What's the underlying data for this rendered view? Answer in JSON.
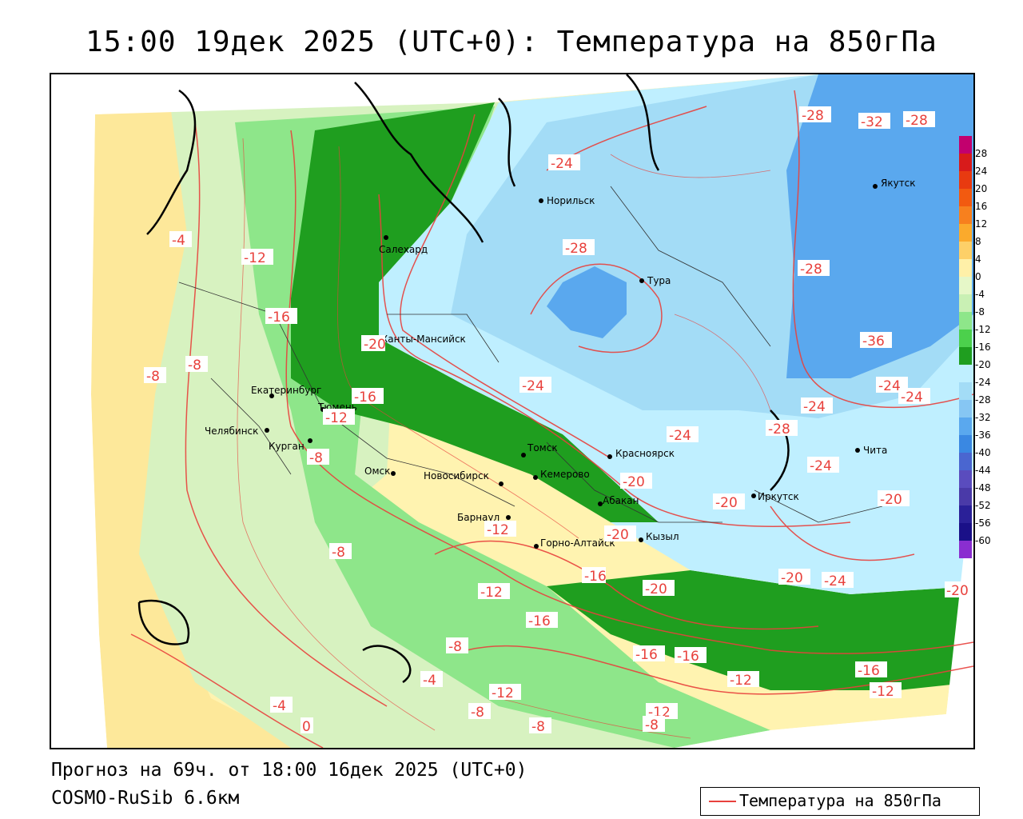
{
  "header": {
    "title": "15:00 19дек 2025 (UTC+0): Температура на 850гПа"
  },
  "footer": {
    "forecast": "Прогноз на 69ч. от 18:00 16дек 2025 (UTC+0)",
    "model": "COSMO-RuSib 6.6км"
  },
  "legend": {
    "label": "Температура на 850гПа",
    "line_color": "#e8413c"
  },
  "colorbar": {
    "ticks": [
      "28",
      "24",
      "20",
      "16",
      "12",
      "8",
      "4",
      "0",
      "-4",
      "-8",
      "-12",
      "-16",
      "-20",
      "-24",
      "-28",
      "-32",
      "-36",
      "-40",
      "-44",
      "-48",
      "-52",
      "-56",
      "-60"
    ],
    "colors": [
      "#c2006e",
      "#d81b1b",
      "#e83a10",
      "#f25a10",
      "#f7801e",
      "#fbaa2c",
      "#fdd068",
      "#fff0a8",
      "#e6f7c8",
      "#c9f0b4",
      "#8ee68a",
      "#4cd04c",
      "#1f9e1f",
      "#bfefff",
      "#a3dcf6",
      "#86c6f3",
      "#5aa8ee",
      "#3a88e2",
      "#4a66d0",
      "#5a4cbe",
      "#4a3aa8",
      "#2a2098",
      "#1a1088",
      "#8a2ed0"
    ]
  },
  "cities": [
    {
      "name": "Норильск"
    },
    {
      "name": "Салехард"
    },
    {
      "name": "Тура"
    },
    {
      "name": "Якутск"
    },
    {
      "name": "Ханты-Мансийск"
    },
    {
      "name": "Екатеринбург"
    },
    {
      "name": "Тюмень"
    },
    {
      "name": "Челябинск"
    },
    {
      "name": "Курган"
    },
    {
      "name": "Омск"
    },
    {
      "name": "Новосибирск"
    },
    {
      "name": "Томск"
    },
    {
      "name": "Красноярск"
    },
    {
      "name": "Кемерово"
    },
    {
      "name": "Абакан"
    },
    {
      "name": "Барнаул"
    },
    {
      "name": "Горно-Алтайск"
    },
    {
      "name": "Кызыл"
    },
    {
      "name": "Иркутск"
    },
    {
      "name": "Чита"
    }
  ],
  "contour_labels": [
    "-28",
    "-32",
    "-28",
    "-24",
    "-28",
    "-28",
    "-12",
    "-4",
    "-16",
    "-36",
    "-20",
    "-8",
    "-8",
    "-24",
    "-24",
    "-16",
    "-24",
    "-12",
    "-28",
    "-24",
    "-8",
    "-24",
    "-20",
    "-20",
    "-20",
    "-24",
    "-12",
    "-8",
    "-20",
    "-16",
    "-20",
    "-20",
    "-24",
    "-12",
    "-20",
    "-16",
    "-8",
    "-16",
    "-16",
    "-16",
    "-12",
    "-4",
    "-12",
    "-12",
    "-8",
    "-12",
    "-4",
    "-8",
    "-8",
    "0"
  ]
}
